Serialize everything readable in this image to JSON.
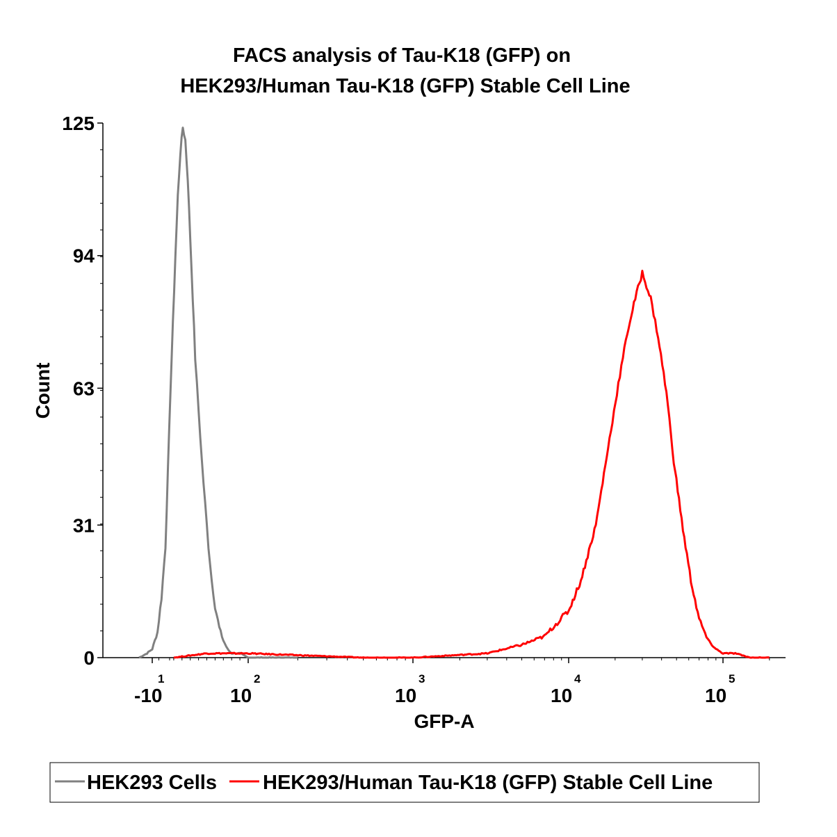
{
  "chart_data": {
    "type": "line",
    "title": [
      "FACS analysis of Tau-K18 (GFP) on",
      "HEK293/Human Tau-K18 (GFP) Stable Cell Line"
    ],
    "xlabel": "GFP-A",
    "ylabel": "Count",
    "x_scale": "biexponential",
    "ylim": [
      0,
      125
    ],
    "y_ticks": [
      0,
      31,
      63,
      94,
      125
    ],
    "x_tick_labels": [
      {
        "base": "-10",
        "exp": "1",
        "value": -10
      },
      {
        "base": "10",
        "exp": "2",
        "value": 100
      },
      {
        "base": "10",
        "exp": "3",
        "value": 1000
      },
      {
        "base": "10",
        "exp": "4",
        "value": 10000
      },
      {
        "base": "10",
        "exp": "5",
        "value": 100000
      }
    ],
    "grid": false,
    "legend_position": "bottom",
    "series": [
      {
        "name": "HEK293 Cells",
        "color": "#808080",
        "x": [
          -20,
          -14,
          -10,
          -6,
          -3,
          0,
          3,
          6,
          9,
          12,
          15,
          18,
          21,
          24,
          27,
          30,
          33,
          36,
          40,
          44,
          48,
          52,
          56,
          60,
          65,
          70,
          75,
          80,
          90,
          100,
          120,
          200
        ],
        "y": [
          0,
          1,
          2,
          6,
          14,
          26,
          44,
          62,
          78,
          94,
          108,
          118,
          124,
          121,
          112,
          98,
          84,
          70,
          58,
          46,
          36,
          26,
          18,
          12,
          7,
          4,
          2,
          1,
          1,
          0,
          0,
          0
        ]
      },
      {
        "name": "HEK293/Human Tau-K18 (GFP) Stable Cell Line",
        "color": "#ff0000",
        "x": [
          10,
          50,
          100,
          500,
          1000,
          3000,
          5000,
          7000,
          10000,
          12000,
          15000,
          18000,
          21000,
          24000,
          27000,
          30000,
          34000,
          38000,
          43000,
          48000,
          55000,
          62000,
          70000,
          80000,
          90000,
          100000,
          120000,
          150000,
          180000,
          200000
        ],
        "y": [
          0,
          1,
          1,
          0,
          0,
          1,
          3,
          5,
          11,
          18,
          31,
          49,
          64,
          76,
          84,
          90,
          84,
          75,
          62,
          46,
          30,
          18,
          9,
          4,
          2,
          1,
          1,
          0,
          0,
          0
        ]
      }
    ]
  }
}
